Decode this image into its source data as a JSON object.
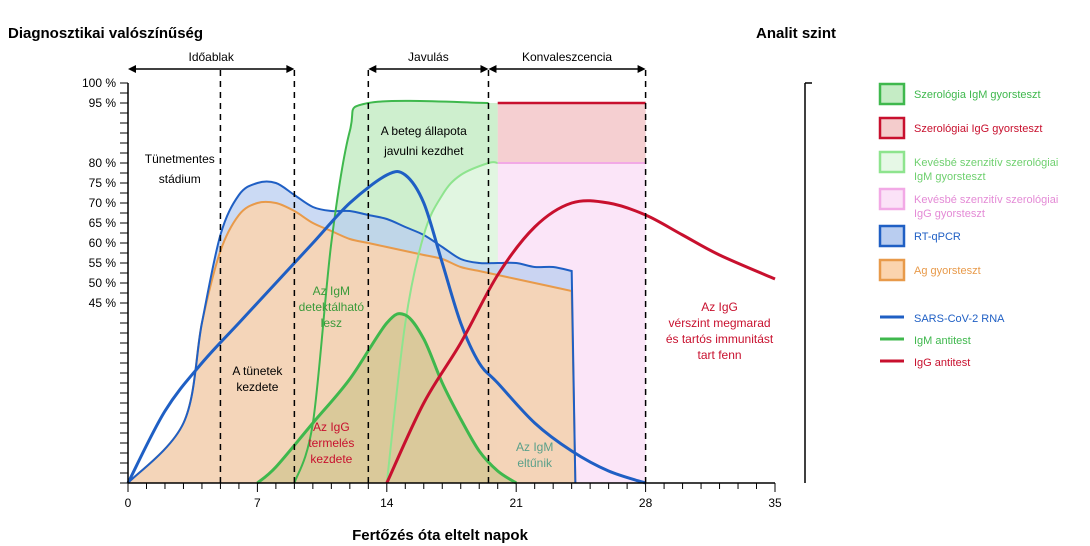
{
  "chart_data": {
    "type": "area",
    "title": "",
    "ylabel": "Diagnosztikai valószínűség",
    "y2label": "Analit szint",
    "xlabel": "Fertőzés óta eltelt napok",
    "xlim": [
      0,
      35
    ],
    "x_ticks": [
      "0",
      "7",
      "14",
      "21",
      "28",
      "35"
    ],
    "y_ticks": [
      "100 %",
      "95 %",
      "80 %",
      "75 %",
      "70 %",
      "65 %",
      "60 %",
      "55 %",
      "50 %",
      "45 %"
    ],
    "phases": [
      {
        "label": "Időablak",
        "start": 0,
        "end": 9
      },
      {
        "label": "Javulás",
        "start": 13,
        "end": 19.5
      },
      {
        "label": "Konvaleszcencia",
        "start": 19.5,
        "end": 28
      }
    ],
    "vlines": [
      5,
      9,
      13,
      19.5,
      28
    ],
    "series": [
      {
        "name": "Szerológia IgM gyorsteszt",
        "color": "#3fb84d",
        "points": [
          [
            9,
            0
          ],
          [
            10,
            15
          ],
          [
            11,
            60
          ],
          [
            12,
            88
          ],
          [
            13,
            95
          ],
          [
            19.5,
            95
          ]
        ]
      },
      {
        "name": "Szerológiai IgG gyorsteszt",
        "color": "#c8102e",
        "points": [
          [
            20,
            95
          ],
          [
            28,
            95
          ]
        ]
      },
      {
        "name": "Kevésbé szenzitív szerológiai IgM gyorsteszt",
        "color": "#8ee48e",
        "points": [
          [
            14,
            0
          ],
          [
            15,
            40
          ],
          [
            16,
            62
          ],
          [
            17,
            72
          ],
          [
            18,
            77
          ],
          [
            19.5,
            80
          ],
          [
            20,
            80
          ]
        ]
      },
      {
        "name": "Kevésbé szenzitív szerológiai IgG gyorsteszt",
        "color": "#ee88dd",
        "points": [
          [
            20,
            80
          ],
          [
            28,
            80
          ]
        ]
      },
      {
        "name": "RT-qPCR",
        "color": "#1f5fc4",
        "points": [
          [
            0,
            0
          ],
          [
            3,
            15
          ],
          [
            4,
            40
          ],
          [
            5,
            62
          ],
          [
            6,
            72
          ],
          [
            7,
            75
          ],
          [
            8,
            75
          ],
          [
            9,
            72
          ],
          [
            10,
            69
          ],
          [
            11,
            68
          ],
          [
            12,
            68
          ],
          [
            13,
            67
          ],
          [
            14,
            66
          ],
          [
            15,
            64
          ],
          [
            16,
            62
          ],
          [
            17,
            59
          ],
          [
            18,
            56
          ],
          [
            19,
            55
          ],
          [
            20,
            55
          ],
          [
            21,
            55
          ],
          [
            22,
            54
          ],
          [
            23,
            54
          ],
          [
            24,
            53
          ],
          [
            24.2,
            0
          ]
        ]
      },
      {
        "name": "Ag gyorsteszt",
        "color": "#e89a4a",
        "points": [
          [
            0,
            0
          ],
          [
            3,
            15
          ],
          [
            4,
            40
          ],
          [
            5,
            58
          ],
          [
            6,
            67
          ],
          [
            7,
            70
          ],
          [
            8,
            70
          ],
          [
            9,
            68
          ],
          [
            10,
            65
          ],
          [
            11,
            63
          ],
          [
            12,
            61
          ],
          [
            13,
            60
          ],
          [
            14,
            59
          ],
          [
            15,
            58
          ],
          [
            16,
            57
          ],
          [
            17,
            56
          ],
          [
            18,
            54
          ],
          [
            19,
            53
          ],
          [
            20,
            52
          ],
          [
            21,
            51
          ],
          [
            22,
            50
          ],
          [
            23,
            49
          ],
          [
            24,
            48
          ],
          [
            24.2,
            0
          ]
        ]
      },
      {
        "name": "SARS-CoV-2 RNA",
        "color": "#1f5fc4",
        "points": [
          [
            0,
            0
          ],
          [
            2,
            18
          ],
          [
            4,
            30
          ],
          [
            6,
            40
          ],
          [
            8,
            50
          ],
          [
            10,
            60
          ],
          [
            12,
            70
          ],
          [
            14,
            77
          ],
          [
            15,
            77
          ],
          [
            16,
            70
          ],
          [
            17,
            55
          ],
          [
            18,
            40
          ],
          [
            19,
            30
          ],
          [
            20,
            25
          ],
          [
            22,
            15
          ],
          [
            24,
            8
          ],
          [
            26,
            3
          ],
          [
            28,
            0
          ]
        ]
      },
      {
        "name": "IgM antitest",
        "color": "#3fb84d",
        "points": [
          [
            7,
            0
          ],
          [
            8,
            4
          ],
          [
            10,
            15
          ],
          [
            12,
            26
          ],
          [
            14,
            40
          ],
          [
            15,
            42
          ],
          [
            16,
            36
          ],
          [
            17,
            25
          ],
          [
            18,
            16
          ],
          [
            19,
            8
          ],
          [
            20,
            3
          ],
          [
            21,
            0
          ]
        ]
      },
      {
        "name": "IgG antitest",
        "color": "#c8102e",
        "points": [
          [
            14,
            0
          ],
          [
            16,
            20
          ],
          [
            18,
            35
          ],
          [
            20,
            52
          ],
          [
            22,
            64
          ],
          [
            24,
            70
          ],
          [
            26,
            70
          ],
          [
            28,
            67
          ],
          [
            30,
            62
          ],
          [
            32,
            57
          ],
          [
            35,
            51
          ]
        ]
      }
    ],
    "annotations": [
      {
        "text": "Tünetmentes",
        "x": 2.8,
        "y": 80
      },
      {
        "text": "stádium",
        "x": 2.8,
        "y": 75
      },
      {
        "text": "A beteg állapota",
        "x": 16,
        "y": 87
      },
      {
        "text": "javulni kezdhet",
        "x": 16,
        "y": 82
      },
      {
        "text": "Az IgM",
        "x": 11,
        "y": 47
      },
      {
        "text": "detektálható",
        "x": 11,
        "y": 43
      },
      {
        "text": "lesz",
        "x": 11,
        "y": 39
      },
      {
        "text": "A tünetek",
        "x": 7,
        "y": 27
      },
      {
        "text": "kezdete",
        "x": 7,
        "y": 23
      },
      {
        "text": "Az IgG",
        "x": 11,
        "y": 13
      },
      {
        "text": "termelés",
        "x": 11,
        "y": 9
      },
      {
        "text": "kezdete",
        "x": 11,
        "y": 5
      },
      {
        "text": "Az IgM",
        "x": 22,
        "y": 8
      },
      {
        "text": "eltűnik",
        "x": 22,
        "y": 4
      },
      {
        "text": "Az IgG",
        "x": 32,
        "y": 43
      },
      {
        "text": "vérszint megmarad",
        "x": 32,
        "y": 39
      },
      {
        "text": "és tartós immunitást",
        "x": 32,
        "y": 35
      },
      {
        "text": "tart fenn",
        "x": 32,
        "y": 31
      }
    ],
    "legend_placement": "right",
    "legend": [
      {
        "type": "box",
        "label": [
          "Szerológia IgM gyorsteszt"
        ],
        "stroke": "#3fb84d",
        "fill": "#c5ecc5",
        "text_color": "#3fb84d"
      },
      {
        "type": "box",
        "label": [
          "Szerológiai IgG gyorsteszt"
        ],
        "stroke": "#c8102e",
        "fill": "#f4cccc",
        "text_color": "#c8102e"
      },
      {
        "type": "box",
        "label": [
          "Kevésbé szenzitív szerológiai",
          "IgM gyorsteszt"
        ],
        "stroke": "#8ee48e",
        "fill": "#e6f8e6",
        "text_color": "#6fd06f"
      },
      {
        "type": "box",
        "label": [
          "Kevésbé szenzitív szerológiai",
          "IgG gyorsteszt"
        ],
        "stroke": "#f2a9e6",
        "fill": "#fbe2f7",
        "text_color": "#e48bd6"
      },
      {
        "type": "box",
        "label": [
          "RT-qPCR"
        ],
        "stroke": "#1f5fc4",
        "fill": "#b9cdf0",
        "text_color": "#1f5fc4"
      },
      {
        "type": "box",
        "label": [
          "Ag gyorsteszt"
        ],
        "stroke": "#e89a4a",
        "fill": "#fbd4ae",
        "text_color": "#e89a4a"
      },
      {
        "type": "line",
        "label": [
          "SARS-CoV-2 RNA"
        ],
        "stroke": "#1f5fc4",
        "text_color": "#1f5fc4"
      },
      {
        "type": "line",
        "label": [
          "IgM antitest"
        ],
        "stroke": "#3fb84d",
        "text_color": "#3fb84d"
      },
      {
        "type": "line",
        "label": [
          "IgG antitest"
        ],
        "stroke": "#c8102e",
        "text_color": "#c8102e"
      }
    ]
  }
}
